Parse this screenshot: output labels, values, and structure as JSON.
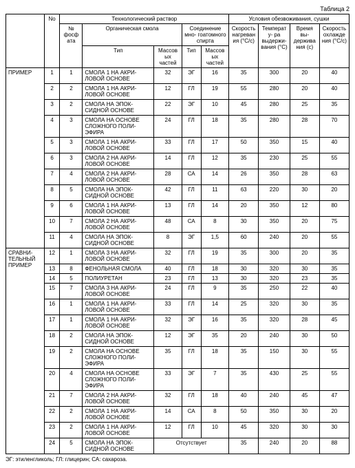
{
  "caption": "Таблица 2",
  "footnote": "ЭГ: этиленгликоль; ГЛ: глицерин; СА: сахароза.",
  "headers": {
    "no": "No",
    "tech": "Технологический раствор",
    "cond": "Условия обезвоживания, сушки",
    "phos": "№ фосфата",
    "resin": "Органическая смола",
    "alc": "Соединение мно-\nгоатомного спирта",
    "heat": "Скорость нагревания (°С/с)",
    "temp": "Температу-\nра выдержи-\nвания (°С)",
    "hold": "Время вы-\nдерживания (с)",
    "cool": "Скорость охлаждения (°С/с)",
    "type": "Тип",
    "parts": "Массовых частей"
  },
  "groups": {
    "ex": "ПРИМЕР",
    "comp": "СРАВНИ-\nТЕЛЬНЫЙ ПРИМЕР"
  },
  "absent": "Отсутствует",
  "rows": [
    {
      "g": "ex",
      "no": "1",
      "ph": "1",
      "resin": "СМОЛА 1 НА АКРИ-\nЛОВОЙ ОСНОВЕ",
      "p1": "32",
      "t": "ЭГ",
      "p2": "16",
      "h": "35",
      "tp": "300",
      "hd": "20",
      "c": "40"
    },
    {
      "g": "ex",
      "no": "2",
      "ph": "2",
      "resin": "СМОЛА 1 НА АКРИ-\nЛОВОЙ ОСНОВЕ",
      "p1": "12",
      "t": "ГЛ",
      "p2": "19",
      "h": "55",
      "tp": "280",
      "hd": "20",
      "c": "40"
    },
    {
      "g": "ex",
      "no": "3",
      "ph": "2",
      "resin": "СМОЛА НА ЭПОК-\nСИДНОЙ ОСНОВЕ",
      "p1": "22",
      "t": "ЭГ",
      "p2": "10",
      "h": "45",
      "tp": "280",
      "hd": "25",
      "c": "35"
    },
    {
      "g": "ex",
      "no": "4",
      "ph": "3",
      "resin": "СМОЛА НА ОСНОВЕ СЛОЖНОГО ПОЛИ-\nЭФИРА",
      "p1": "24",
      "t": "ГЛ",
      "p2": "18",
      "h": "35",
      "tp": "280",
      "hd": "28",
      "c": "70"
    },
    {
      "g": "ex",
      "no": "5",
      "ph": "3",
      "resin": "СМОЛА 1 НА АКРИ-\nЛОВОЙ ОСНОВЕ",
      "p1": "33",
      "t": "ГЛ",
      "p2": "17",
      "h": "50",
      "tp": "350",
      "hd": "15",
      "c": "40"
    },
    {
      "g": "ex",
      "no": "6",
      "ph": "3",
      "resin": "СМОЛА 2 НА АКРИ-\nЛОВОЙ ОСНОВЕ",
      "p1": "14",
      "t": "ГЛ",
      "p2": "12",
      "h": "35",
      "tp": "230",
      "hd": "25",
      "c": "55"
    },
    {
      "g": "ex",
      "no": "7",
      "ph": "4",
      "resin": "СМОЛА 2 НА АКРИ-\nЛОВОЙ ОСНОВЕ",
      "p1": "28",
      "t": "СА",
      "p2": "14",
      "h": "26",
      "tp": "350",
      "hd": "28",
      "c": "63"
    },
    {
      "g": "ex",
      "no": "8",
      "ph": "5",
      "resin": "СМОЛА НА ЭПОК-\nСИДНОЙ ОСНОВЕ",
      "p1": "42",
      "t": "ГЛ",
      "p2": "11",
      "h": "63",
      "tp": "220",
      "hd": "30",
      "c": "20"
    },
    {
      "g": "ex",
      "no": "9",
      "ph": "6",
      "resin": "СМОЛА 1 НА АКРИ-\nЛОВОЙ ОСНОВЕ",
      "p1": "13",
      "t": "ГЛ",
      "p2": "14",
      "h": "20",
      "tp": "350",
      "hd": "12",
      "c": "80"
    },
    {
      "g": "ex",
      "no": "10",
      "ph": "7",
      "resin": "СМОЛА 2 НА АКРИ-\nЛОВОЙ ОСНОВЕ",
      "p1": "48",
      "t": "СА",
      "p2": "8",
      "h": "30",
      "tp": "350",
      "hd": "20",
      "c": "75"
    },
    {
      "g": "ex",
      "no": "11",
      "ph": "4",
      "resin": "СМОЛА НА ЭПОК-\nСИДНОЙ ОСНОВЕ",
      "p1": "8",
      "t": "ЭГ",
      "p2": "1,5",
      "h": "60",
      "tp": "240",
      "hd": "20",
      "c": "55"
    },
    {
      "g": "comp",
      "no": "12",
      "ph": "1",
      "resin": "СМОЛА 3 НА АКРИ-\nЛОВОЙ ОСНОВЕ",
      "p1": "32",
      "t": "ГЛ",
      "p2": "19",
      "h": "35",
      "tp": "300",
      "hd": "20",
      "c": "35"
    },
    {
      "g": "comp",
      "no": "13",
      "ph": "8",
      "resin": "ФЕНОЛЬНАЯ СМОЛА",
      "p1": "40",
      "t": "ГЛ",
      "p2": "18",
      "h": "30",
      "tp": "320",
      "hd": "30",
      "c": "35"
    },
    {
      "g": "comp",
      "no": "14",
      "ph": "5",
      "resin": "ПОЛИУРЕТАН",
      "p1": "23",
      "t": "ГЛ",
      "p2": "13",
      "h": "30",
      "tp": "320",
      "hd": "23",
      "c": "35"
    },
    {
      "g": "comp",
      "no": "15",
      "ph": "7",
      "resin": "СМОЛА 3 НА АКРИ-\nЛОВОЙ ОСНОВЕ",
      "p1": "24",
      "t": "ГЛ",
      "p2": "9",
      "h": "35",
      "tp": "250",
      "hd": "22",
      "c": "40"
    },
    {
      "g": "comp",
      "no": "16",
      "ph": "1",
      "resin": "СМОЛА 1 НА АКРИ-\nЛОВОЙ ОСНОВЕ",
      "p1": "33",
      "t": "ГЛ",
      "p2": "14",
      "h": "25",
      "tp": "320",
      "hd": "30",
      "c": "35"
    },
    {
      "g": "comp",
      "no": "17",
      "ph": "1",
      "resin": "СМОЛА 1 НА АКРИ-\nЛОВОЙ ОСНОВЕ",
      "p1": "32",
      "t": "ЭГ",
      "p2": "16",
      "h": "35",
      "tp": "320",
      "hd": "28",
      "c": "45"
    },
    {
      "g": "comp",
      "no": "18",
      "ph": "2",
      "resin": "СМОЛА НА ЭПОК-\nСИДНОЙ ОСНОВЕ",
      "p1": "12",
      "t": "ЭГ",
      "p2": "35",
      "h": "20",
      "tp": "240",
      "hd": "30",
      "c": "50"
    },
    {
      "g": "comp",
      "no": "19",
      "ph": "2",
      "resin": "СМОЛА НА ОСНОВЕ СЛОЖНОГО ПОЛИ-\nЭФИРА",
      "p1": "35",
      "t": "ГЛ",
      "p2": "18",
      "h": "35",
      "tp": "150",
      "hd": "30",
      "c": "55"
    },
    {
      "g": "comp",
      "no": "20",
      "ph": "4",
      "resin": "СМОЛА НА ОСНОВЕ СЛОЖНОГО ПОЛИ-\nЭФИРА",
      "p1": "33",
      "t": "ЭГ",
      "p2": "7",
      "h": "35",
      "tp": "430",
      "hd": "25",
      "c": "55"
    },
    {
      "g": "comp",
      "no": "21",
      "ph": "7",
      "resin": "СМОЛА 2 НА АКРИ-\nЛОВОЙ ОСНОВЕ",
      "p1": "32",
      "t": "ГЛ",
      "p2": "18",
      "h": "40",
      "tp": "240",
      "hd": "45",
      "c": "47"
    },
    {
      "g": "comp",
      "no": "22",
      "ph": "2",
      "resin": "СМОЛА 1 НА АКРИ-\nЛОВОЙ ОСНОВЕ",
      "p1": "14",
      "t": "СА",
      "p2": "8",
      "h": "50",
      "tp": "350",
      "hd": "30",
      "c": "20"
    },
    {
      "g": "comp",
      "no": "23",
      "ph": "2",
      "resin": "СМОЛА 1 НА АКРИ-\nЛОВОЙ ОСНОВЕ",
      "p1": "12",
      "t": "ГЛ",
      "p2": "10",
      "h": "45",
      "tp": "320",
      "hd": "30",
      "c": "30"
    },
    {
      "g": "comp",
      "no": "24",
      "ph": "5",
      "resin": "СМОЛА НА ЭПОК-\nСИДНОЙ ОСНОВЕ",
      "p1": "",
      "t": "absent",
      "p2": "",
      "h": "35",
      "tp": "240",
      "hd": "20",
      "c": "88"
    }
  ]
}
